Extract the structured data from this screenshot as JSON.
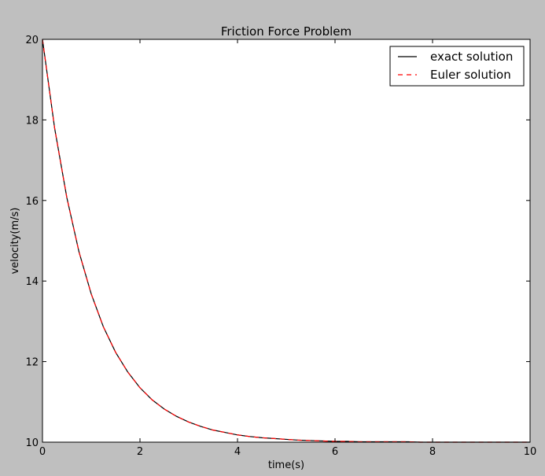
{
  "chart_data": {
    "type": "line",
    "title": "Friction Force Problem",
    "xlabel": "time(s)",
    "ylabel": "velocity(m/s)",
    "xlim": [
      0,
      10
    ],
    "ylim": [
      10,
      20
    ],
    "xticks": [
      0,
      2,
      4,
      6,
      8,
      10
    ],
    "yticks": [
      10,
      12,
      14,
      16,
      18,
      20
    ],
    "xtick_labels": [
      "0",
      "2",
      "4",
      "6",
      "8",
      "10"
    ],
    "ytick_labels": [
      "10",
      "12",
      "14",
      "16",
      "18",
      "20"
    ],
    "grid": false,
    "legend_position": "top-right",
    "series": [
      {
        "name": "exact solution",
        "color": "#000000",
        "line_style": "solid",
        "x": [
          0,
          0.25,
          0.5,
          0.75,
          1,
          1.25,
          1.5,
          1.75,
          2,
          2.25,
          2.5,
          2.75,
          3,
          3.25,
          3.5,
          3.75,
          4,
          4.25,
          4.5,
          4.75,
          5,
          5.25,
          5.5,
          5.75,
          6,
          6.25,
          6.5,
          6.75,
          7,
          7.25,
          7.5,
          7.75,
          8,
          8.25,
          8.5,
          8.75,
          9,
          9.25,
          9.5,
          9.75,
          10
        ],
        "y": [
          20,
          17.79,
          16.07,
          14.72,
          13.68,
          12.86,
          12.23,
          11.74,
          11.35,
          11.05,
          10.82,
          10.64,
          10.5,
          10.39,
          10.3,
          10.24,
          10.18,
          10.14,
          10.11,
          10.09,
          10.07,
          10.05,
          10.04,
          10.03,
          10.02,
          10.02,
          10.01,
          10.01,
          10.01,
          10.01,
          10.01,
          10,
          10,
          10,
          10,
          10,
          10,
          10,
          10,
          10,
          10
        ]
      },
      {
        "name": "Euler solution",
        "color": "#ff0000",
        "line_style": "dashed",
        "x": [
          0,
          0.25,
          0.5,
          0.75,
          1,
          1.25,
          1.5,
          1.75,
          2,
          2.25,
          2.5,
          2.75,
          3,
          3.25,
          3.5,
          3.75,
          4,
          4.25,
          4.5,
          4.75,
          5,
          5.25,
          5.5,
          5.75,
          6,
          6.25,
          6.5,
          6.75,
          7,
          7.25,
          7.5,
          7.75,
          8,
          8.25,
          8.5,
          8.75,
          9,
          9.25,
          9.5,
          9.75,
          10
        ],
        "y": [
          20,
          17.79,
          16.07,
          14.72,
          13.68,
          12.86,
          12.23,
          11.74,
          11.35,
          11.05,
          10.82,
          10.64,
          10.5,
          10.39,
          10.3,
          10.24,
          10.18,
          10.14,
          10.11,
          10.09,
          10.07,
          10.05,
          10.04,
          10.03,
          10.02,
          10.02,
          10.01,
          10.01,
          10.01,
          10.01,
          10.01,
          10,
          10,
          10,
          10,
          10,
          10,
          10,
          10,
          10,
          10
        ]
      }
    ]
  },
  "colors": {
    "figure_background": "#bfbfbf",
    "axes_background": "#ffffff"
  }
}
